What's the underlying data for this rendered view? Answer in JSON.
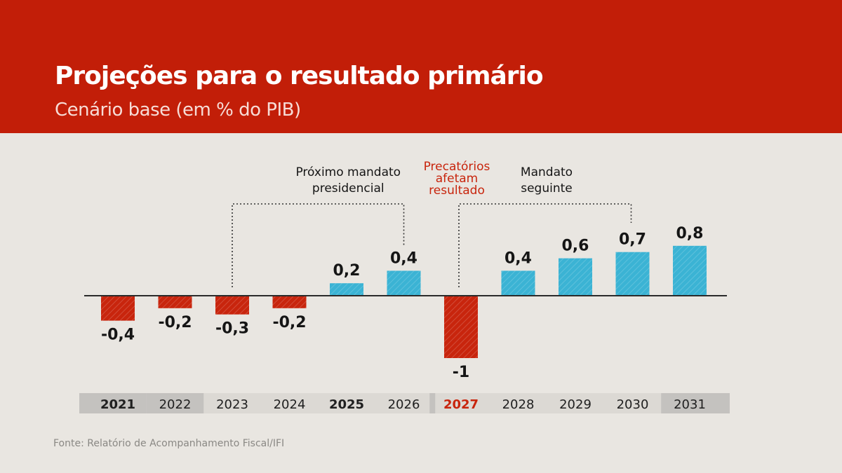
{
  "header": {
    "title": "Projeções para o resultado primário",
    "subtitle": "Cenário base (em % do PIB)"
  },
  "chart_data": {
    "type": "bar",
    "title": "Projeções para o resultado primário",
    "subtitle": "Cenário base (em % do PIB)",
    "categories": [
      "2021",
      "2022",
      "2023",
      "2024",
      "2025",
      "2026",
      "2027",
      "2028",
      "2029",
      "2030",
      "2031"
    ],
    "values": [
      -0.4,
      -0.2,
      -0.3,
      -0.2,
      0.2,
      0.4,
      -1,
      0.4,
      0.6,
      0.7,
      0.8
    ],
    "value_labels": [
      "-0,4",
      "-0,2",
      "-0,3",
      "-0,2",
      "0,2",
      "0,4",
      "-1",
      "0,4",
      "0,6",
      "0,7",
      "0,8"
    ],
    "bold_years": [
      "2021",
      "2025",
      "2027"
    ],
    "highlight_year": "2027",
    "shaded_years": [
      "2021",
      "2022",
      "2031"
    ],
    "colors": {
      "positive": "#3bb3d4",
      "negative": "#c8250d",
      "highlight_text": "#c8250d",
      "header": "#c21e08",
      "background": "#e9e6e1"
    },
    "annotations": [
      {
        "lines": [
          "Próximo mandato",
          "presidencial"
        ],
        "from": "2023",
        "to": "2026",
        "color": "#151515"
      },
      {
        "lines": [
          "Precatórios",
          "afetam",
          "resultado"
        ],
        "at": "2027",
        "color": "#c8250d"
      },
      {
        "lines": [
          "Mandato",
          "seguinte"
        ],
        "from": "2027",
        "to": "2030",
        "color": "#151515"
      }
    ],
    "xlabel": "",
    "ylabel": "",
    "grid": false,
    "legend": "none"
  },
  "source": "Fonte: Relatório de Acompanhamento Fiscal/IFI"
}
